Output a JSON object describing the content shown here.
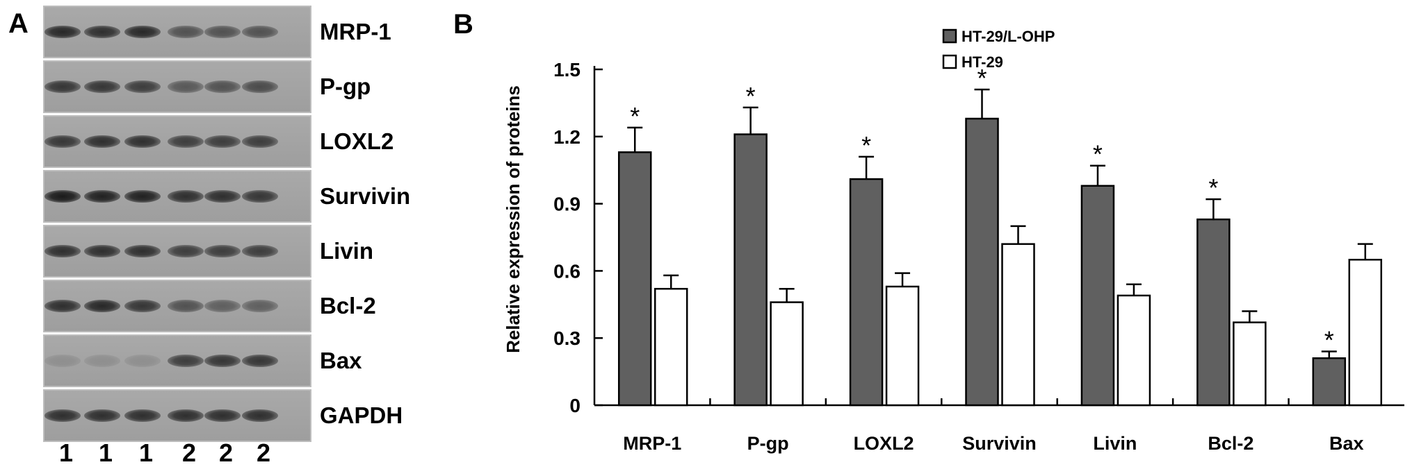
{
  "panel_a": {
    "letter": "A",
    "blots": [
      {
        "label": "MRP-1",
        "intensities": [
          0.9,
          0.85,
          0.9,
          0.6,
          0.6,
          0.6
        ]
      },
      {
        "label": "P-gp",
        "intensities": [
          0.8,
          0.8,
          0.75,
          0.55,
          0.6,
          0.65
        ]
      },
      {
        "label": "LOXL2",
        "intensities": [
          0.8,
          0.85,
          0.85,
          0.75,
          0.75,
          0.75
        ]
      },
      {
        "label": "Survivin",
        "intensities": [
          1.0,
          0.95,
          0.95,
          0.85,
          0.85,
          0.8
        ]
      },
      {
        "label": "Livin",
        "intensities": [
          0.85,
          0.85,
          0.85,
          0.75,
          0.75,
          0.75
        ]
      },
      {
        "label": "Bcl-2",
        "intensities": [
          0.85,
          0.9,
          0.8,
          0.6,
          0.5,
          0.5
        ]
      },
      {
        "label": "Bax",
        "intensities": [
          0.15,
          0.15,
          0.15,
          0.75,
          0.8,
          0.8
        ]
      },
      {
        "label": "GAPDH",
        "intensities": [
          0.85,
          0.85,
          0.85,
          0.85,
          0.85,
          0.85
        ]
      }
    ],
    "lanes": [
      "1",
      "1",
      "1",
      "2",
      "2",
      "2"
    ]
  },
  "chart_data": {
    "type": "bar",
    "panel_letter": "B",
    "categories": [
      "MRP-1",
      "P-gp",
      "LOXL2",
      "Survivin",
      "Livin",
      "Bcl-2",
      "Bax"
    ],
    "series": [
      {
        "name": "HT-29/L-OHP",
        "color": "#606060",
        "values": [
          1.13,
          1.21,
          1.01,
          1.28,
          0.98,
          0.83,
          0.21
        ],
        "errors": [
          0.11,
          0.12,
          0.1,
          0.13,
          0.09,
          0.09,
          0.03
        ]
      },
      {
        "name": "HT-29",
        "color": "#ffffff",
        "values": [
          0.52,
          0.46,
          0.53,
          0.72,
          0.49,
          0.37,
          0.65
        ],
        "errors": [
          0.06,
          0.06,
          0.06,
          0.08,
          0.05,
          0.05,
          0.07
        ]
      }
    ],
    "significance_marker": "*",
    "ylabel": "Relative expression of proteins",
    "xlabel": "",
    "yticks": [
      "0",
      "0.3",
      "0.6",
      "0.9",
      "1.2",
      "1.5"
    ],
    "ylim": [
      0,
      1.5
    ],
    "legend_position": "top-right",
    "grid": false
  }
}
